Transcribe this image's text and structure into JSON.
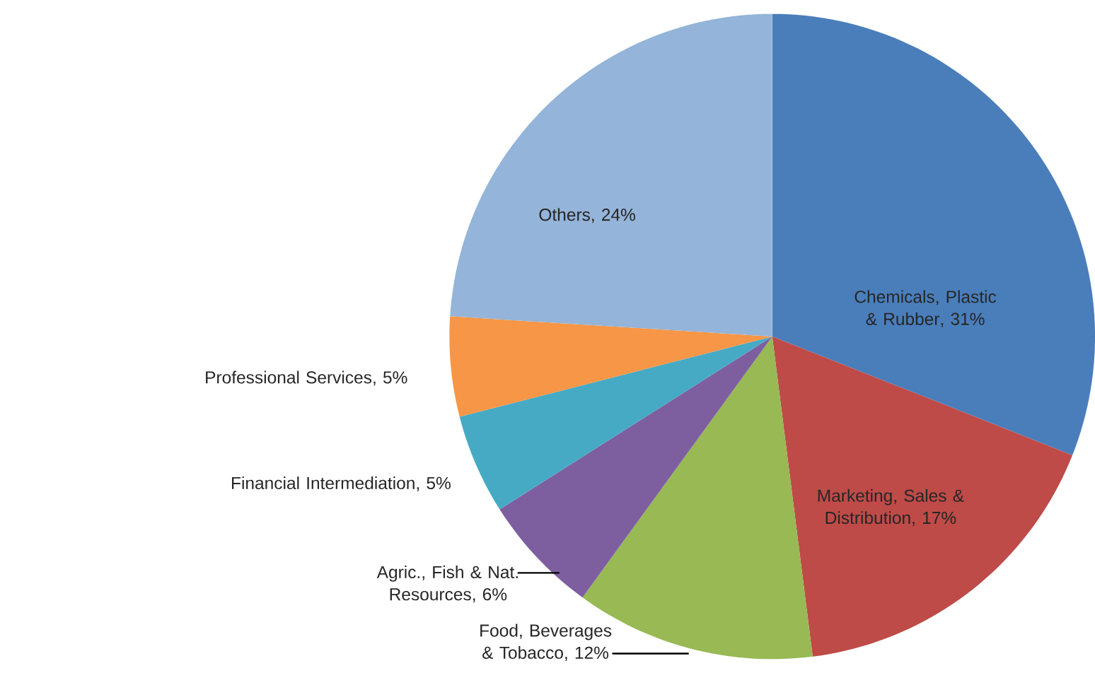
{
  "chart_data": {
    "type": "pie",
    "categories": [
      "Chemicals, Plastic & Rubber",
      "Marketing, Sales & Distribution",
      "Food, Beverages & Tobacco",
      "Agric., Fish & Nat. Resources",
      "Financial Intermediation",
      "Professional Services",
      "Others"
    ],
    "values": [
      31,
      17,
      12,
      6,
      5,
      5,
      24
    ],
    "value_labels": [
      ", 31%",
      ", 17%",
      ", 12%",
      ", 6%",
      ", 5%",
      ", 5%",
      ", 24%"
    ],
    "colors": [
      "#4a7ebb",
      "#be4b48",
      "#98b954",
      "#7d5fa0",
      "#46aac5",
      "#f79646",
      "#94b4d9"
    ]
  }
}
